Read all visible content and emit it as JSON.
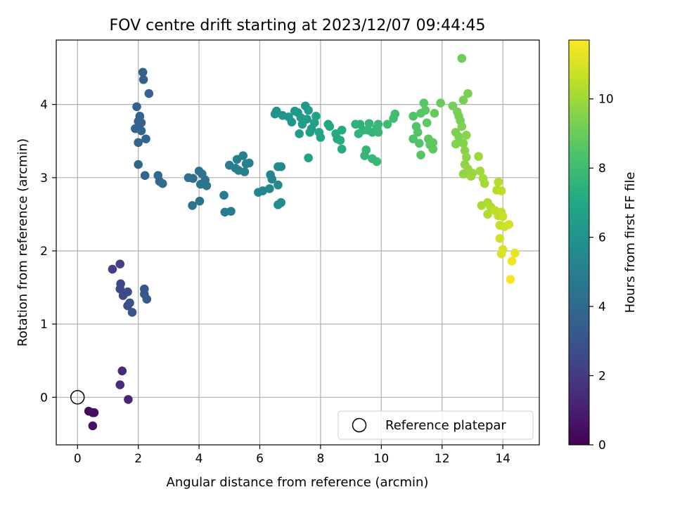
{
  "chart_data": {
    "type": "scatter",
    "title": "FOV centre drift starting at 2023/12/07 09:44:45",
    "xlabel": "Angular distance from reference (arcmin)",
    "ylabel": "Rotation from reference (arcmin)",
    "xlim": [
      -0.7,
      15.2
    ],
    "ylim": [
      -0.65,
      4.88
    ],
    "xticks": [
      0,
      2,
      4,
      6,
      8,
      10,
      12,
      14
    ],
    "yticks": [
      0,
      1,
      2,
      3,
      4
    ],
    "xtick_labels": [
      "0",
      "2",
      "4",
      "6",
      "8",
      "10",
      "12",
      "14"
    ],
    "ytick_labels": [
      "0",
      "1",
      "2",
      "3",
      "4"
    ],
    "grid": true,
    "colormap": "viridis",
    "colorbar": {
      "label": "Hours from first FF file",
      "min": 0,
      "max": 11.7,
      "ticks": [
        0,
        2,
        4,
        6,
        8,
        10
      ],
      "tick_labels": [
        "0",
        "2",
        "4",
        "6",
        "8",
        "10"
      ]
    },
    "legend": {
      "position": "lower-right",
      "label": "Reference platepar"
    },
    "reference_point": {
      "x": 0,
      "y": 0
    },
    "points": [
      {
        "x": 0.37,
        "y": -0.19,
        "t": 0.3
      },
      {
        "x": 0.5,
        "y": -0.21,
        "t": 0.4
      },
      {
        "x": 0.55,
        "y": -0.21,
        "t": 0.5
      },
      {
        "x": 0.5,
        "y": -0.39,
        "t": 0.6
      },
      {
        "x": 1.67,
        "y": -0.03,
        "t": 1.2
      },
      {
        "x": 1.47,
        "y": 0.36,
        "t": 1.4
      },
      {
        "x": 1.4,
        "y": 0.17,
        "t": 1.5
      },
      {
        "x": 1.15,
        "y": 1.75,
        "t": 2.2
      },
      {
        "x": 1.4,
        "y": 1.82,
        "t": 2.3
      },
      {
        "x": 1.42,
        "y": 1.55,
        "t": 2.4
      },
      {
        "x": 1.4,
        "y": 1.48,
        "t": 2.5
      },
      {
        "x": 1.5,
        "y": 1.39,
        "t": 2.6
      },
      {
        "x": 1.65,
        "y": 1.44,
        "t": 2.7
      },
      {
        "x": 1.65,
        "y": 1.25,
        "t": 2.8
      },
      {
        "x": 1.72,
        "y": 1.29,
        "t": 2.9
      },
      {
        "x": 1.8,
        "y": 1.16,
        "t": 3.0
      },
      {
        "x": 2.2,
        "y": 1.48,
        "t": 3.1
      },
      {
        "x": 2.2,
        "y": 1.41,
        "t": 3.2
      },
      {
        "x": 2.28,
        "y": 1.34,
        "t": 3.3
      },
      {
        "x": 2.15,
        "y": 4.44,
        "t": 3.5
      },
      {
        "x": 2.17,
        "y": 4.34,
        "t": 3.5
      },
      {
        "x": 2.35,
        "y": 4.15,
        "t": 3.6
      },
      {
        "x": 1.95,
        "y": 3.97,
        "t": 3.6
      },
      {
        "x": 2.05,
        "y": 3.84,
        "t": 3.7
      },
      {
        "x": 2.0,
        "y": 3.77,
        "t": 3.7
      },
      {
        "x": 2.1,
        "y": 3.75,
        "t": 3.7
      },
      {
        "x": 1.9,
        "y": 3.67,
        "t": 3.8
      },
      {
        "x": 2.1,
        "y": 3.64,
        "t": 3.8
      },
      {
        "x": 2.25,
        "y": 3.53,
        "t": 3.8
      },
      {
        "x": 2.0,
        "y": 3.48,
        "t": 3.8
      },
      {
        "x": 2.0,
        "y": 3.18,
        "t": 3.9
      },
      {
        "x": 2.22,
        "y": 3.03,
        "t": 3.9
      },
      {
        "x": 2.65,
        "y": 3.03,
        "t": 4.0
      },
      {
        "x": 2.7,
        "y": 2.95,
        "t": 4.0
      },
      {
        "x": 2.8,
        "y": 2.92,
        "t": 4.1
      },
      {
        "x": 3.65,
        "y": 3.0,
        "t": 4.3
      },
      {
        "x": 3.8,
        "y": 2.99,
        "t": 4.3
      },
      {
        "x": 4.0,
        "y": 3.09,
        "t": 4.4
      },
      {
        "x": 4.1,
        "y": 3.05,
        "t": 4.4
      },
      {
        "x": 4.2,
        "y": 2.97,
        "t": 4.4
      },
      {
        "x": 4.05,
        "y": 2.91,
        "t": 4.5
      },
      {
        "x": 4.25,
        "y": 2.89,
        "t": 4.5
      },
      {
        "x": 3.78,
        "y": 2.62,
        "t": 4.5
      },
      {
        "x": 4.02,
        "y": 2.68,
        "t": 4.5
      },
      {
        "x": 4.82,
        "y": 2.76,
        "t": 4.8
      },
      {
        "x": 4.85,
        "y": 2.53,
        "t": 4.8
      },
      {
        "x": 5.05,
        "y": 2.54,
        "t": 4.9
      },
      {
        "x": 5.0,
        "y": 3.17,
        "t": 4.9
      },
      {
        "x": 5.25,
        "y": 3.25,
        "t": 5.0
      },
      {
        "x": 5.2,
        "y": 3.13,
        "t": 5.0
      },
      {
        "x": 5.3,
        "y": 3.1,
        "t": 5.0
      },
      {
        "x": 5.45,
        "y": 3.3,
        "t": 5.0
      },
      {
        "x": 5.55,
        "y": 3.19,
        "t": 5.1
      },
      {
        "x": 5.65,
        "y": 3.2,
        "t": 5.1
      },
      {
        "x": 5.5,
        "y": 3.08,
        "t": 5.1
      },
      {
        "x": 5.95,
        "y": 2.8,
        "t": 5.3
      },
      {
        "x": 6.1,
        "y": 2.82,
        "t": 5.3
      },
      {
        "x": 6.32,
        "y": 2.85,
        "t": 5.4
      },
      {
        "x": 6.35,
        "y": 3.04,
        "t": 5.4
      },
      {
        "x": 6.4,
        "y": 2.98,
        "t": 5.4
      },
      {
        "x": 6.6,
        "y": 3.15,
        "t": 5.5
      },
      {
        "x": 6.7,
        "y": 3.15,
        "t": 5.5
      },
      {
        "x": 6.6,
        "y": 2.9,
        "t": 5.5
      },
      {
        "x": 6.6,
        "y": 2.63,
        "t": 5.6
      },
      {
        "x": 6.7,
        "y": 2.66,
        "t": 5.6
      },
      {
        "x": 6.5,
        "y": 3.87,
        "t": 5.9
      },
      {
        "x": 6.55,
        "y": 3.91,
        "t": 6.0
      },
      {
        "x": 6.75,
        "y": 3.85,
        "t": 6.0
      },
      {
        "x": 6.95,
        "y": 3.83,
        "t": 6.1
      },
      {
        "x": 7.05,
        "y": 3.76,
        "t": 6.1
      },
      {
        "x": 7.15,
        "y": 3.91,
        "t": 6.2
      },
      {
        "x": 7.25,
        "y": 3.89,
        "t": 6.2
      },
      {
        "x": 7.35,
        "y": 3.82,
        "t": 6.3
      },
      {
        "x": 7.5,
        "y": 3.98,
        "t": 6.3
      },
      {
        "x": 7.6,
        "y": 3.92,
        "t": 6.4
      },
      {
        "x": 7.4,
        "y": 3.73,
        "t": 6.4
      },
      {
        "x": 7.55,
        "y": 3.8,
        "t": 6.4
      },
      {
        "x": 7.3,
        "y": 3.6,
        "t": 6.5
      },
      {
        "x": 7.7,
        "y": 3.67,
        "t": 6.5
      },
      {
        "x": 7.8,
        "y": 3.75,
        "t": 6.6
      },
      {
        "x": 7.65,
        "y": 3.62,
        "t": 6.6
      },
      {
        "x": 7.85,
        "y": 3.84,
        "t": 6.7
      },
      {
        "x": 7.6,
        "y": 3.27,
        "t": 6.7
      },
      {
        "x": 7.95,
        "y": 3.62,
        "t": 6.8
      },
      {
        "x": 8.0,
        "y": 3.55,
        "t": 6.8
      },
      {
        "x": 8.25,
        "y": 3.73,
        "t": 7.0
      },
      {
        "x": 8.3,
        "y": 3.7,
        "t": 7.0
      },
      {
        "x": 8.5,
        "y": 3.6,
        "t": 7.1
      },
      {
        "x": 8.55,
        "y": 3.53,
        "t": 7.1
      },
      {
        "x": 8.65,
        "y": 3.51,
        "t": 7.2
      },
      {
        "x": 8.7,
        "y": 3.65,
        "t": 7.2
      },
      {
        "x": 8.7,
        "y": 3.39,
        "t": 7.2
      },
      {
        "x": 9.15,
        "y": 3.73,
        "t": 7.5
      },
      {
        "x": 9.3,
        "y": 3.73,
        "t": 7.5
      },
      {
        "x": 9.4,
        "y": 3.65,
        "t": 7.6
      },
      {
        "x": 9.25,
        "y": 3.6,
        "t": 7.6
      },
      {
        "x": 9.6,
        "y": 3.74,
        "t": 7.7
      },
      {
        "x": 9.55,
        "y": 3.65,
        "t": 7.7
      },
      {
        "x": 9.7,
        "y": 3.62,
        "t": 7.7
      },
      {
        "x": 9.85,
        "y": 3.68,
        "t": 7.8
      },
      {
        "x": 9.9,
        "y": 3.73,
        "t": 7.8
      },
      {
        "x": 9.9,
        "y": 3.62,
        "t": 7.8
      },
      {
        "x": 9.5,
        "y": 3.38,
        "t": 7.7
      },
      {
        "x": 9.45,
        "y": 3.3,
        "t": 7.7
      },
      {
        "x": 9.7,
        "y": 3.26,
        "t": 7.8
      },
      {
        "x": 9.85,
        "y": 3.22,
        "t": 7.8
      },
      {
        "x": 10.2,
        "y": 3.73,
        "t": 8.0
      },
      {
        "x": 10.4,
        "y": 3.81,
        "t": 8.1
      },
      {
        "x": 10.45,
        "y": 3.87,
        "t": 8.1
      },
      {
        "x": 11.05,
        "y": 3.84,
        "t": 8.4
      },
      {
        "x": 11.05,
        "y": 3.53,
        "t": 8.4
      },
      {
        "x": 11.15,
        "y": 3.7,
        "t": 8.5
      },
      {
        "x": 11.2,
        "y": 3.62,
        "t": 8.5
      },
      {
        "x": 11.25,
        "y": 3.47,
        "t": 8.5
      },
      {
        "x": 11.3,
        "y": 3.31,
        "t": 8.6
      },
      {
        "x": 11.3,
        "y": 3.88,
        "t": 8.6
      },
      {
        "x": 11.4,
        "y": 4.02,
        "t": 8.6
      },
      {
        "x": 11.45,
        "y": 3.92,
        "t": 8.7
      },
      {
        "x": 11.5,
        "y": 3.75,
        "t": 8.7
      },
      {
        "x": 11.55,
        "y": 3.53,
        "t": 8.7
      },
      {
        "x": 11.6,
        "y": 3.45,
        "t": 8.8
      },
      {
        "x": 11.7,
        "y": 3.48,
        "t": 8.8
      },
      {
        "x": 11.7,
        "y": 3.39,
        "t": 8.8
      },
      {
        "x": 11.75,
        "y": 3.88,
        "t": 8.9
      },
      {
        "x": 11.95,
        "y": 4.02,
        "t": 9.0
      },
      {
        "x": 12.35,
        "y": 3.98,
        "t": 9.2
      },
      {
        "x": 12.5,
        "y": 3.9,
        "t": 9.3
      },
      {
        "x": 12.55,
        "y": 3.84,
        "t": 9.3
      },
      {
        "x": 12.6,
        "y": 3.78,
        "t": 9.3
      },
      {
        "x": 12.45,
        "y": 3.62,
        "t": 9.4
      },
      {
        "x": 12.55,
        "y": 3.56,
        "t": 9.4
      },
      {
        "x": 12.65,
        "y": 3.7,
        "t": 9.4
      },
      {
        "x": 12.45,
        "y": 3.46,
        "t": 9.5
      },
      {
        "x": 12.7,
        "y": 3.47,
        "t": 9.5
      },
      {
        "x": 12.8,
        "y": 3.58,
        "t": 9.6
      },
      {
        "x": 12.75,
        "y": 3.37,
        "t": 9.6
      },
      {
        "x": 12.65,
        "y": 4.63,
        "t": 9.1
      },
      {
        "x": 12.7,
        "y": 4.06,
        "t": 9.2
      },
      {
        "x": 12.85,
        "y": 4.15,
        "t": 9.3
      },
      {
        "x": 12.8,
        "y": 3.28,
        "t": 9.7
      },
      {
        "x": 12.75,
        "y": 3.18,
        "t": 9.7
      },
      {
        "x": 12.85,
        "y": 3.12,
        "t": 9.8
      },
      {
        "x": 12.7,
        "y": 3.05,
        "t": 9.8
      },
      {
        "x": 12.95,
        "y": 3.02,
        "t": 9.9
      },
      {
        "x": 13.0,
        "y": 3.06,
        "t": 9.9
      },
      {
        "x": 13.2,
        "y": 3.29,
        "t": 10.0
      },
      {
        "x": 13.25,
        "y": 3.09,
        "t": 10.0
      },
      {
        "x": 13.35,
        "y": 2.99,
        "t": 10.1
      },
      {
        "x": 13.4,
        "y": 2.92,
        "t": 10.1
      },
      {
        "x": 13.3,
        "y": 2.62,
        "t": 10.2
      },
      {
        "x": 13.5,
        "y": 2.66,
        "t": 10.2
      },
      {
        "x": 13.6,
        "y": 2.6,
        "t": 10.3
      },
      {
        "x": 13.5,
        "y": 2.5,
        "t": 10.3
      },
      {
        "x": 13.8,
        "y": 2.83,
        "t": 10.4
      },
      {
        "x": 13.85,
        "y": 2.94,
        "t": 10.4
      },
      {
        "x": 13.95,
        "y": 2.82,
        "t": 10.5
      },
      {
        "x": 13.75,
        "y": 2.55,
        "t": 10.5
      },
      {
        "x": 13.85,
        "y": 2.48,
        "t": 10.6
      },
      {
        "x": 13.95,
        "y": 2.53,
        "t": 10.6
      },
      {
        "x": 14.0,
        "y": 2.47,
        "t": 10.7
      },
      {
        "x": 13.9,
        "y": 2.35,
        "t": 10.7
      },
      {
        "x": 14.05,
        "y": 2.33,
        "t": 10.8
      },
      {
        "x": 14.2,
        "y": 2.36,
        "t": 10.9
      },
      {
        "x": 13.9,
        "y": 2.17,
        "t": 10.9
      },
      {
        "x": 14.0,
        "y": 2.02,
        "t": 11.0
      },
      {
        "x": 13.95,
        "y": 1.96,
        "t": 11.1
      },
      {
        "x": 14.4,
        "y": 1.97,
        "t": 11.3
      },
      {
        "x": 14.3,
        "y": 1.86,
        "t": 11.4
      },
      {
        "x": 14.25,
        "y": 1.61,
        "t": 11.6
      }
    ]
  }
}
